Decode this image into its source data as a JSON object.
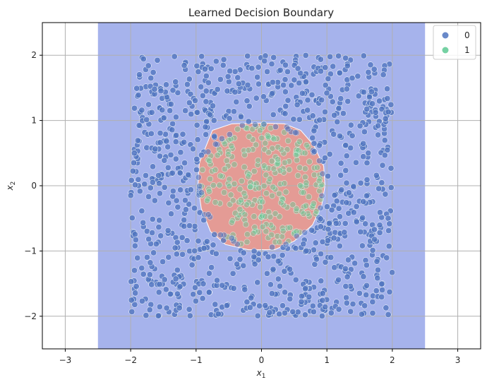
{
  "chart_data": {
    "type": "scatter",
    "title": "Learned Decision Boundary",
    "xlabel": {
      "main": "x",
      "sub": "1"
    },
    "ylabel": {
      "main": "x",
      "sub": "2"
    },
    "xlim": [
      -3.35,
      3.35
    ],
    "ylim": [
      -2.5,
      2.5
    ],
    "xticks": [
      -3,
      -2,
      -1,
      0,
      1,
      2,
      3
    ],
    "yticks": [
      -2,
      -1,
      0,
      1,
      2
    ],
    "tick_labels_x": [
      "−3",
      "−2",
      "−1",
      "0",
      "1",
      "2",
      "3"
    ],
    "tick_labels_y": [
      "−2",
      "−1",
      "0",
      "1",
      "2"
    ],
    "grid": true,
    "legend": {
      "placement": "top-right",
      "entries": [
        "0",
        "1"
      ]
    },
    "colors": {
      "region_0": "#a6b3ec",
      "region_1": "#e49b95",
      "class_0": "#4f74bf",
      "class_1": "#66cc99",
      "grid": "#b0b0b0",
      "boundary": "#ffffff"
    },
    "decision_region_1": {
      "polygon": [
        [
          -0.75,
          0.85
        ],
        [
          -0.45,
          0.95
        ],
        [
          0.0,
          0.96
        ],
        [
          0.35,
          0.95
        ],
        [
          0.6,
          0.85
        ],
        [
          0.8,
          0.62
        ],
        [
          0.95,
          0.3
        ],
        [
          0.97,
          0.0
        ],
        [
          0.92,
          -0.3
        ],
        [
          0.78,
          -0.6
        ],
        [
          0.5,
          -0.85
        ],
        [
          0.2,
          -0.98
        ],
        [
          -0.2,
          -0.98
        ],
        [
          -0.55,
          -0.9
        ],
        [
          -0.78,
          -0.7
        ],
        [
          -0.92,
          -0.35
        ],
        [
          -0.97,
          0.0
        ],
        [
          -0.95,
          0.35
        ]
      ]
    },
    "decision_region_0": {
      "x_range": [
        -2.5,
        2.5
      ],
      "y_range": [
        -2.5,
        2.5
      ]
    },
    "series": [
      {
        "name": "0",
        "distribution": "uniform",
        "x_range": [
          -2,
          2
        ],
        "y_range": [
          -2,
          2
        ],
        "exclude_radius": 1.0,
        "count": 900
      },
      {
        "name": "1",
        "distribution": "uniform",
        "center": [
          0,
          0
        ],
        "radius": 0.95,
        "count": 240
      }
    ]
  }
}
